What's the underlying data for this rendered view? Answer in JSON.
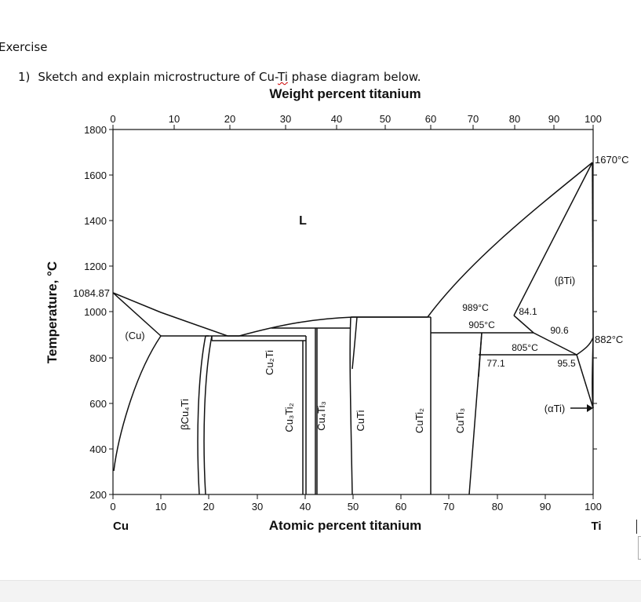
{
  "page": {
    "heading": "Exercise"
  },
  "question": {
    "number": "1)",
    "text_before": "Sketch and explain microstructure of Cu-",
    "text_flagged": "Ti",
    "text_after": " phase diagram below."
  },
  "diagram": {
    "top_axis_title": "Weight percent titanium",
    "bottom_axis_title": "Atomic percent titanium",
    "y_axis_title": "Temperature, °C",
    "top_ticks": [
      "0",
      "10",
      "20",
      "30",
      "40",
      "50",
      "60",
      "70",
      "80",
      "90",
      "100"
    ],
    "bottom_ticks": [
      "0",
      "10",
      "20",
      "30",
      "40",
      "50",
      "60",
      "70",
      "80",
      "90",
      "100"
    ],
    "y_ticks": [
      "1800",
      "1600",
      "1400",
      "1200",
      "1000",
      "800",
      "600",
      "400",
      "200"
    ],
    "left_element": "Cu",
    "right_element": "Ti",
    "cu_melting": "1084.87",
    "ti_melting": "1670°C",
    "ti_transform": "882°C",
    "phases": {
      "liquid": "L",
      "cu": "(Cu)",
      "beta_ti": "(βTi)",
      "alpha_ti": "(αTi)",
      "bcu4ti": "βCu₄Ti",
      "cu2ti": "Cu₂Ti",
      "cu3ti2": "Cu₃Ti₂",
      "cu4ti3": "Cu₄Ti₃",
      "cuti": "CuTi",
      "cuti2": "CuTi₂",
      "cuti3": "CuTi₃"
    },
    "annotations": {
      "t989": "989°C",
      "t905": "905°C",
      "t805": "805°C",
      "c841": "84.1",
      "c906": "90.6",
      "c771": "77.1",
      "c955": "95.5"
    }
  }
}
